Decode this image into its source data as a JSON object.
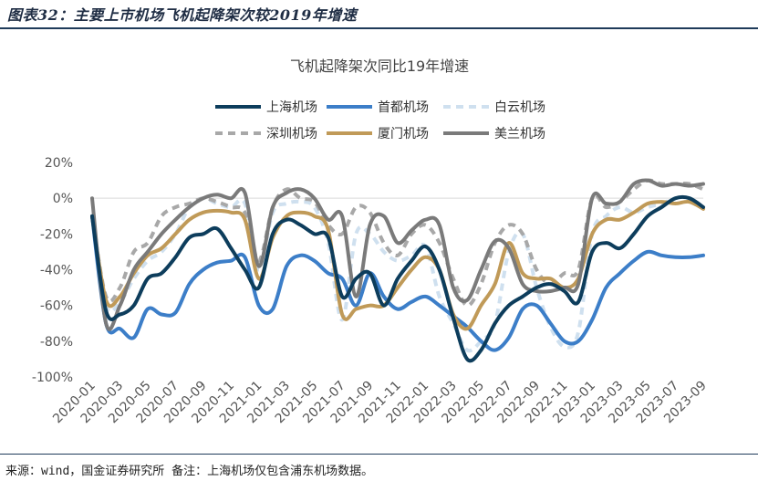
{
  "figure": {
    "title": "图表32：主要上市机场飞机起降架次较2019年增速",
    "footer": "来源：wind，国金证券研究所  备注：上海机场仅包含浦东机场数据。"
  },
  "chart_data": {
    "type": "line",
    "title": "飞机起降架次同比19年增速",
    "xlabel": "",
    "ylabel": "",
    "ylim": [
      -100,
      20
    ],
    "yticks": [
      "20%",
      "0%",
      "-20%",
      "-40%",
      "-60%",
      "-80%",
      "-100%"
    ],
    "ytick_values": [
      20,
      0,
      -20,
      -40,
      -60,
      -80,
      -100
    ],
    "grid": false,
    "legend_position": "top",
    "x_tick_labels": [
      "2020-01",
      "2020-03",
      "2020-05",
      "2020-07",
      "2020-09",
      "2020-11",
      "2021-01",
      "2021-03",
      "2021-05",
      "2021-07",
      "2021-09",
      "2021-11",
      "2022-01",
      "2022-03",
      "2022-05",
      "2022-07",
      "2022-09",
      "2022-11",
      "2023-01",
      "2023-03",
      "2023-05",
      "2023-07",
      "2023-09"
    ],
    "x": [
      "2020-01",
      "2020-02",
      "2020-03",
      "2020-04",
      "2020-05",
      "2020-06",
      "2020-07",
      "2020-08",
      "2020-09",
      "2020-10",
      "2020-11",
      "2020-12",
      "2021-01",
      "2021-02",
      "2021-03",
      "2021-04",
      "2021-05",
      "2021-06",
      "2021-07",
      "2021-08",
      "2021-09",
      "2021-10",
      "2021-11",
      "2021-12",
      "2022-01",
      "2022-02",
      "2022-03",
      "2022-04",
      "2022-05",
      "2022-06",
      "2022-07",
      "2022-08",
      "2022-09",
      "2022-10",
      "2022-11",
      "2022-12",
      "2023-01",
      "2023-02",
      "2023-03",
      "2023-04",
      "2023-05",
      "2023-06",
      "2023-07",
      "2023-08",
      "2023-09"
    ],
    "series": [
      {
        "name": "上海机场",
        "color": "#0d3d5c",
        "dash": "solid",
        "values": [
          -10,
          -63,
          -65,
          -60,
          -45,
          -42,
          -33,
          -22,
          -20,
          -17,
          -28,
          -40,
          -50,
          -20,
          -12,
          -15,
          -20,
          -22,
          -55,
          -45,
          -42,
          -60,
          -45,
          -35,
          -27,
          -40,
          -67,
          -90,
          -85,
          -70,
          -60,
          -55,
          -50,
          -48,
          -52,
          -58,
          -30,
          -25,
          -28,
          -20,
          -10,
          -5,
          0,
          0,
          -5
        ]
      },
      {
        "name": "首都机场",
        "color": "#3c7ec8",
        "dash": "solid",
        "values": [
          -10,
          -70,
          -73,
          -78,
          -62,
          -65,
          -64,
          -48,
          -40,
          -36,
          -35,
          -33,
          -60,
          -62,
          -38,
          -32,
          -35,
          -42,
          -45,
          -60,
          -42,
          -55,
          -62,
          -58,
          -55,
          -60,
          -66,
          -72,
          -80,
          -85,
          -78,
          -62,
          -60,
          -70,
          -80,
          -80,
          -68,
          -50,
          -42,
          -35,
          -30,
          -32,
          -33,
          -33,
          -32
        ]
      },
      {
        "name": "白云机场",
        "color": "#cfe0ef",
        "dash": "8,6",
        "values": [
          -10,
          -60,
          -58,
          -45,
          -35,
          -30,
          -20,
          -5,
          0,
          -3,
          -5,
          -3,
          -40,
          -8,
          -3,
          -2,
          -5,
          -25,
          -68,
          -20,
          -20,
          -30,
          -35,
          -32,
          -27,
          -55,
          -70,
          -85,
          -80,
          -70,
          -30,
          -20,
          -50,
          -72,
          -83,
          -75,
          -20,
          -10,
          -5,
          -8,
          -5,
          -3,
          0,
          0,
          -5
        ]
      },
      {
        "name": "深圳机场",
        "color": "#a8a8a8",
        "dash": "8,6",
        "values": [
          -10,
          -55,
          -50,
          -30,
          -25,
          -10,
          -5,
          -3,
          0,
          -2,
          -5,
          -8,
          -35,
          -5,
          5,
          0,
          -2,
          -15,
          -20,
          -5,
          -8,
          -25,
          -32,
          -20,
          -15,
          -25,
          -45,
          -60,
          -48,
          -25,
          -15,
          -20,
          -40,
          -48,
          -42,
          -40,
          0,
          -5,
          -2,
          5,
          10,
          8,
          8,
          8,
          5
        ]
      },
      {
        "name": "厦门机场",
        "color": "#c09a58",
        "dash": "solid",
        "values": [
          -10,
          -57,
          -55,
          -42,
          -32,
          -28,
          -20,
          -12,
          -8,
          -7,
          -8,
          -12,
          -45,
          -22,
          -10,
          -8,
          -10,
          -18,
          -65,
          -62,
          -60,
          -60,
          -50,
          -40,
          -33,
          -40,
          -65,
          -73,
          -60,
          -48,
          -25,
          -42,
          -45,
          -45,
          -50,
          -45,
          -20,
          -12,
          -12,
          -8,
          -3,
          -2,
          -3,
          -2,
          -6
        ]
      },
      {
        "name": "美兰机场",
        "color": "#7a7a7a",
        "dash": "solid",
        "values": [
          0,
          -70,
          -60,
          -40,
          -30,
          -20,
          -12,
          -5,
          0,
          2,
          0,
          3,
          -38,
          -5,
          3,
          5,
          0,
          -12,
          -10,
          -55,
          -15,
          -10,
          -25,
          -18,
          -12,
          -15,
          -50,
          -57,
          -40,
          -24,
          -28,
          -48,
          -52,
          -52,
          -50,
          -48,
          0,
          -3,
          -2,
          8,
          10,
          7,
          8,
          7,
          8
        ]
      }
    ]
  }
}
